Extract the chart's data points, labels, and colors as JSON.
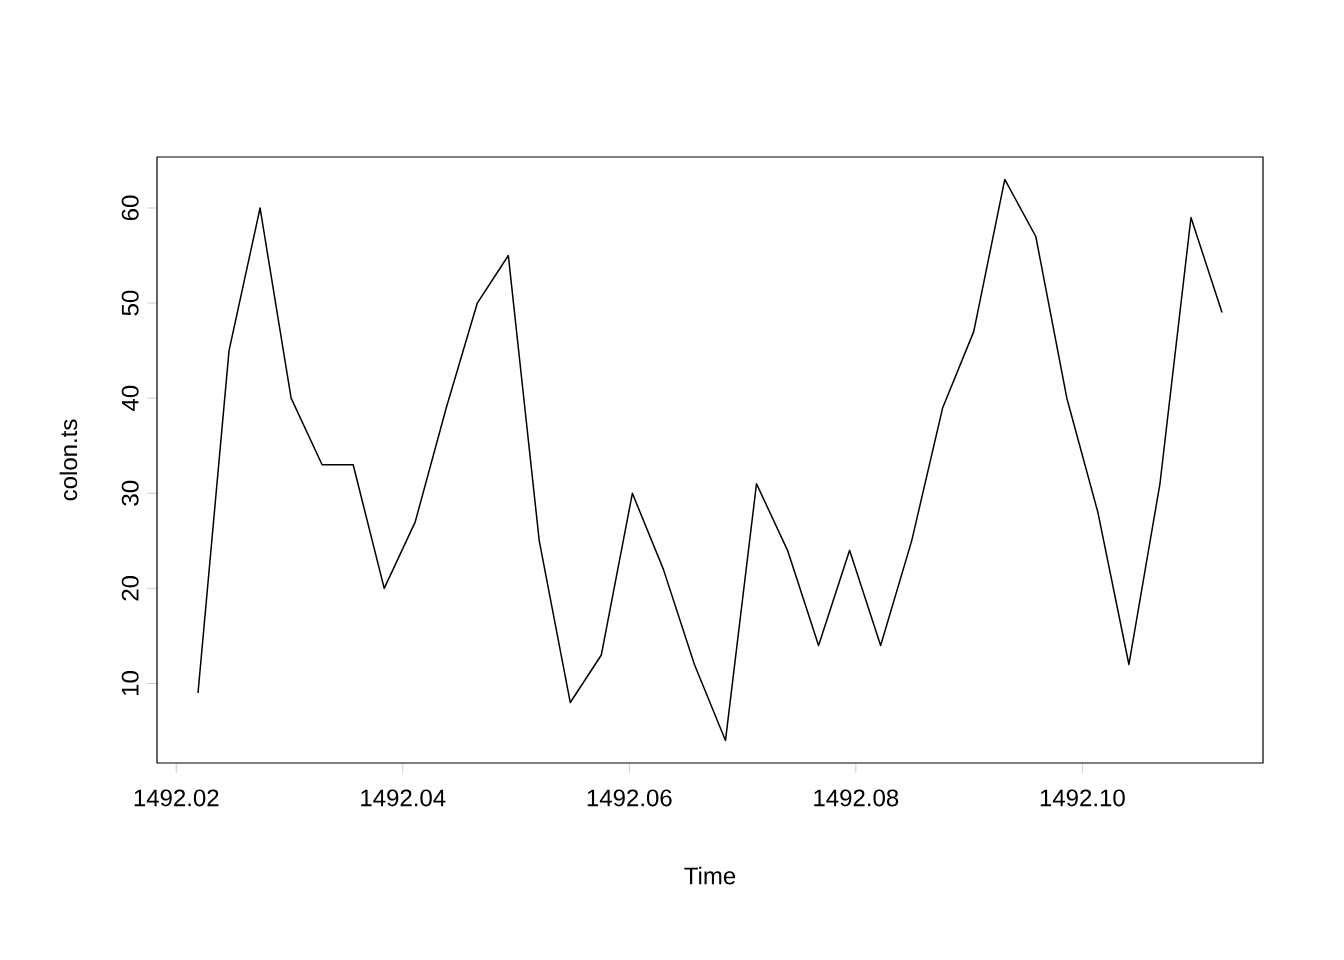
{
  "chart_data": {
    "type": "line",
    "xlabel": "Time",
    "ylabel": "colon.ts",
    "x": [
      1492.02192,
      1492.02466,
      1492.0274,
      1492.03014,
      1492.03288,
      1492.03562,
      1492.03836,
      1492.0411,
      1492.04384,
      1492.04658,
      1492.04932,
      1492.05205,
      1492.05479,
      1492.05753,
      1492.06027,
      1492.06301,
      1492.06575,
      1492.06849,
      1492.07123,
      1492.07397,
      1492.07671,
      1492.07945,
      1492.08219,
      1492.08493,
      1492.08767,
      1492.09041,
      1492.09315,
      1492.09589,
      1492.09863,
      1492.10137,
      1492.10411,
      1492.10685,
      1492.10959,
      1492.11233
    ],
    "series": [
      {
        "color": "#000000",
        "values": [
          9,
          45,
          60,
          40,
          33,
          33,
          20,
          27,
          39,
          50,
          55,
          25,
          8,
          13,
          30,
          22,
          12,
          4,
          31,
          24,
          14,
          24,
          14,
          25,
          39,
          47,
          63,
          57,
          40,
          28,
          12,
          31,
          59,
          49
        ]
      }
    ],
    "xlim": [
      1492.0183,
      1492.11595
    ],
    "ylim": [
      1.64,
      65.36
    ],
    "xticks": [
      1492.02,
      1492.04,
      1492.06,
      1492.08,
      {
        "value": 1492.1,
        "label": "1492.10"
      }
    ],
    "yticks": [
      10,
      20,
      30,
      40,
      50,
      60
    ]
  }
}
